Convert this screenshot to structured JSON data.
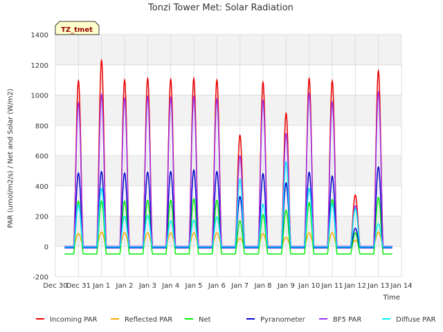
{
  "chart_data": {
    "type": "line",
    "title": "Tonzi Tower Met: Solar Radiation",
    "xlabel": "Time",
    "ylabel": "PAR (umol/m2/s) / Net and Solar (W/m2)",
    "ylim": [
      -200,
      1400
    ],
    "yticks": [
      -200,
      0,
      200,
      400,
      600,
      800,
      1000,
      1200,
      1400
    ],
    "xlim": [
      0,
      15
    ],
    "xticks": [
      {
        "value": 0,
        "label": "Dec 30"
      },
      {
        "value": 1,
        "label": "Dec 31"
      },
      {
        "value": 2,
        "label": "Jan 1"
      },
      {
        "value": 3,
        "label": "Jan 2"
      },
      {
        "value": 4,
        "label": "Jan 3"
      },
      {
        "value": 5,
        "label": "Jan 4"
      },
      {
        "value": 6,
        "label": "Jan 5"
      },
      {
        "value": 7,
        "label": "Jan 6"
      },
      {
        "value": 8,
        "label": "Jan 7"
      },
      {
        "value": 9,
        "label": "Jan 8"
      },
      {
        "value": 10,
        "label": "Jan 9"
      },
      {
        "value": 11,
        "label": "Jan 10"
      },
      {
        "value": 12,
        "label": "Jan 11"
      },
      {
        "value": 13,
        "label": "Jan 12"
      },
      {
        "value": 14,
        "label": "Jan 13"
      },
      {
        "value": 15,
        "label": "Jan 14"
      }
    ],
    "annotation": "TZ_tmet",
    "series": [
      {
        "name": "Incoming PAR",
        "color": "#ee0000",
        "night": 0,
        "daily_peak": [
          1095,
          1230,
          1100,
          1110,
          1105,
          1110,
          1100,
          735,
          1085,
          880,
          1110,
          1095,
          340,
          1160
        ]
      },
      {
        "name": "Reflected PAR",
        "color": "#ffaa00",
        "night": 0,
        "daily_peak": [
          85,
          95,
          90,
          90,
          90,
          90,
          90,
          55,
          85,
          60,
          90,
          90,
          40,
          95
        ]
      },
      {
        "name": "Net",
        "color": "#00ee00",
        "night": -50,
        "daily_peak": [
          300,
          300,
          300,
          305,
          305,
          315,
          305,
          170,
          210,
          240,
          290,
          310,
          90,
          325
        ]
      },
      {
        "name": "Pyranometer",
        "color": "#0000cc",
        "night": -10,
        "daily_peak": [
          485,
          495,
          485,
          490,
          495,
          505,
          495,
          330,
          480,
          420,
          490,
          465,
          120,
          525
        ]
      },
      {
        "name": "BF5 PAR",
        "color": "#9933ee",
        "night": 0,
        "daily_peak": [
          950,
          1005,
          980,
          990,
          985,
          990,
          975,
          600,
          965,
          745,
          1010,
          955,
          270,
          1020
        ]
      },
      {
        "name": "Diffuse PAR",
        "color": "#00eeff",
        "night": -5,
        "daily_peak": [
          275,
          385,
          200,
          205,
          170,
          175,
          195,
          445,
          280,
          560,
          385,
          280,
          250,
          150
        ]
      }
    ]
  }
}
